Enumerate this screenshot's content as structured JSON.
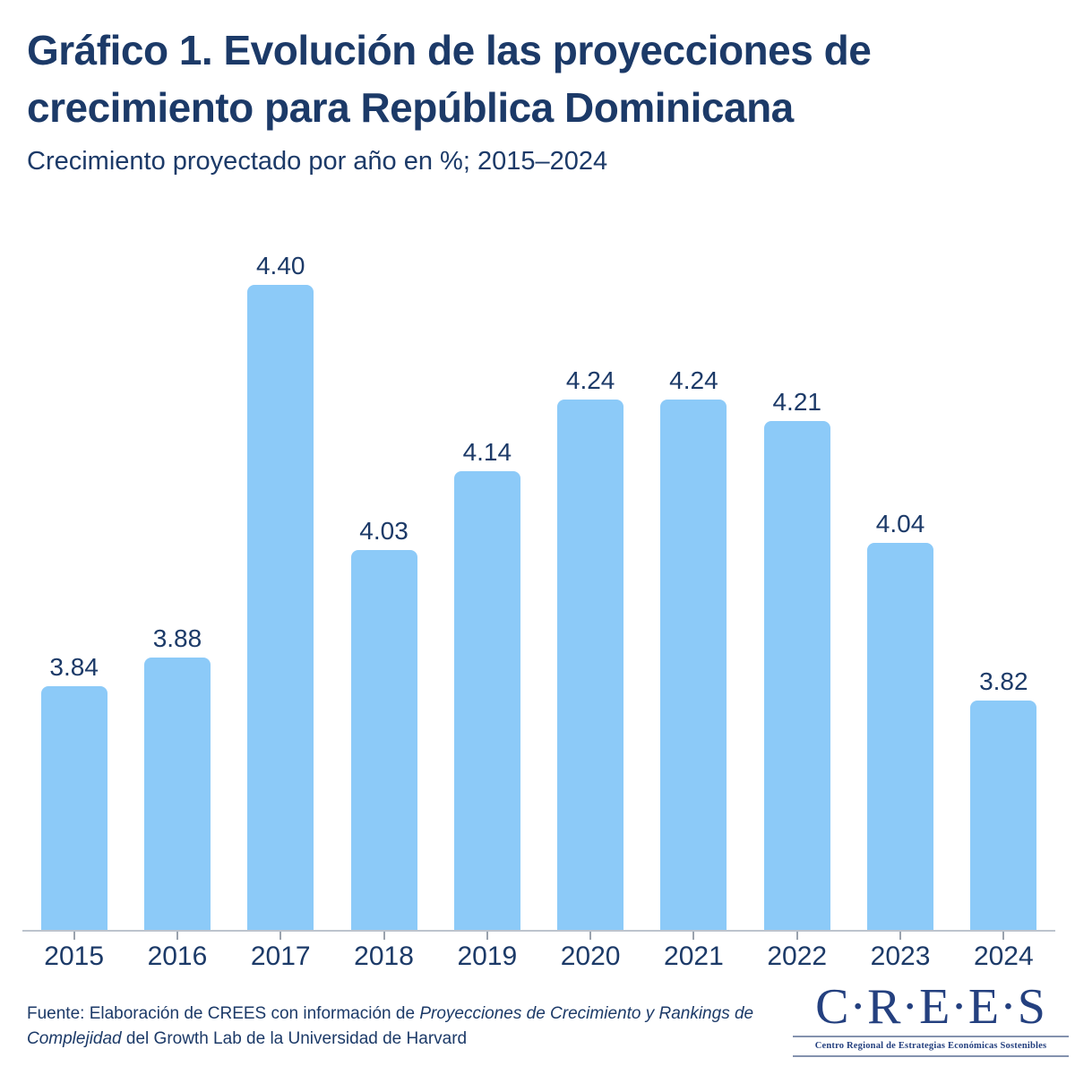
{
  "header": {
    "title": "Gráfico 1. Evolución de las proyecciones de crecimiento para República Dominicana",
    "subtitle": "Crecimiento proyectado por año en %; 2015–2024"
  },
  "chart_data": {
    "type": "bar",
    "title": "Gráfico 1. Evolución de las proyecciones de crecimiento para República Dominicana",
    "subtitle": "Crecimiento proyectado por año en %; 2015–2024",
    "categories": [
      "2015",
      "2016",
      "2017",
      "2018",
      "2019",
      "2020",
      "2021",
      "2022",
      "2023",
      "2024"
    ],
    "values": [
      3.84,
      3.88,
      4.4,
      4.03,
      4.14,
      4.24,
      4.24,
      4.21,
      4.04,
      3.82
    ],
    "value_labels": [
      "3.84",
      "3.88",
      "4.40",
      "4.03",
      "4.14",
      "4.24",
      "4.24",
      "4.21",
      "4.04",
      "3.82"
    ],
    "xlabel": "",
    "ylabel": "",
    "ylim": [
      3.5,
      4.55
    ],
    "grid": false,
    "legend_position": "none",
    "bar_color": "#8ccaf8",
    "data_label_color": "#1c3a68",
    "axis_line_color": "#bdc4cd"
  },
  "footer": {
    "source_prefix": "Fuente: Elaboración de CREES con información de ",
    "source_italic": "Proyecciones de Crecimiento y Rankings de Complejidad",
    "source_suffix": " del Growth Lab de la Universidad de Harvard"
  },
  "logo": {
    "wordmark": "C·R·E·E·S",
    "tagline": "Centro Regional de Estrategias Económicas Sostenibles",
    "color": "#24407f"
  },
  "theme": {
    "text_navy": "#1c3a68",
    "background": "#ffffff"
  }
}
